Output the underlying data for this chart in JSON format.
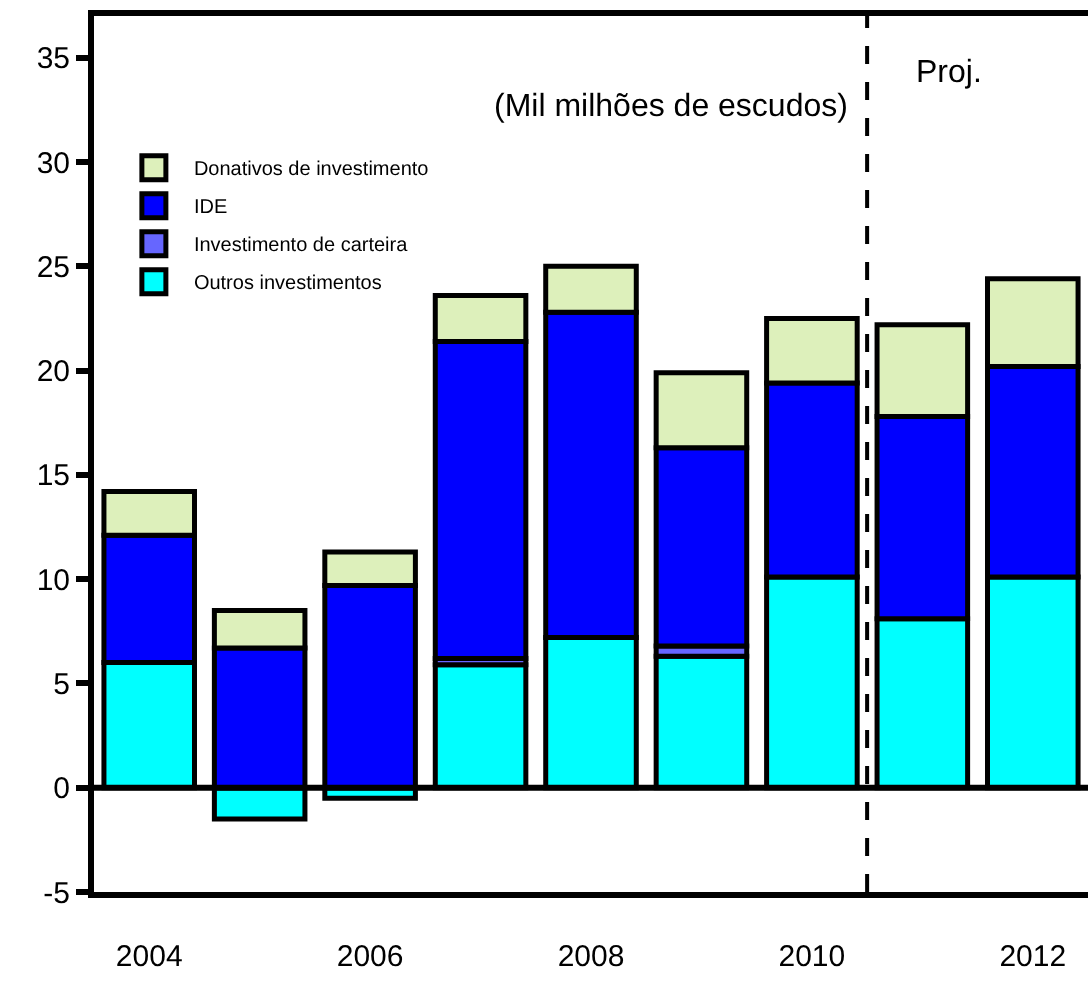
{
  "chart_data": {
    "type": "bar",
    "stacked": true,
    "x": [
      2004,
      2005,
      2006,
      2007,
      2008,
      2009,
      2010,
      2011,
      2012
    ],
    "series": [
      {
        "name": "Outros investimentos",
        "color": "#00ffff",
        "values": [
          6.0,
          -1.5,
          -0.5,
          5.9,
          7.2,
          6.3,
          10.1,
          8.1,
          10.1
        ]
      },
      {
        "name": "Investimento de carteira",
        "color": "#6666ff",
        "values": [
          null,
          null,
          null,
          0.3,
          null,
          0.5,
          null,
          null,
          null
        ]
      },
      {
        "name": "IDE",
        "color": "#0000ff",
        "values": [
          6.1,
          6.7,
          9.7,
          15.2,
          15.6,
          9.5,
          9.3,
          9.7,
          10.1
        ]
      },
      {
        "name": "Donativos de investimento",
        "color": "#ddf0bb",
        "values": [
          2.1,
          1.8,
          1.6,
          2.2,
          2.2,
          3.6,
          3.1,
          4.4,
          4.2
        ]
      }
    ],
    "xlim": [
      2003.5,
      2012.5
    ],
    "xticks": [
      2004,
      2006,
      2008,
      2010,
      2012
    ],
    "ylim": [
      -5,
      37
    ],
    "yticks": [
      -5,
      0,
      5,
      10,
      15,
      20,
      25,
      30,
      35
    ],
    "ref_lines": [
      {
        "axis": "y",
        "value": 0,
        "color": "#000000"
      },
      {
        "axis": "x",
        "value": 2010.5,
        "label": "Proj.",
        "line_style": "dashed",
        "color": "#000000"
      }
    ],
    "annotations": [
      "(Mil milhões de escudos)"
    ],
    "legend": "top left",
    "grid": false
  }
}
